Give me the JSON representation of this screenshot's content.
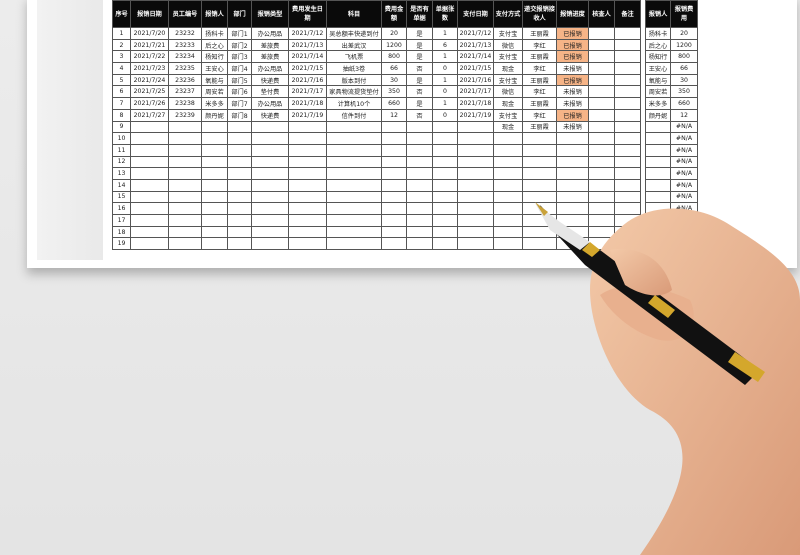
{
  "main_table": {
    "headers": [
      "序号",
      "报销日期",
      "员工编号",
      "报销人",
      "部门",
      "报销类型",
      "费用发生日期",
      "科目",
      "费用金额",
      "是否有单据",
      "单据张数",
      "支付日期",
      "支付方式",
      "递交报销接收人",
      "报销进度",
      "核查人",
      "备注"
    ],
    "rows": [
      [
        "1",
        "2021/7/20",
        "23232",
        "扬科卡",
        "部门1",
        "办公用品",
        "2021/7/12",
        "吴总额丰快递到付",
        "20",
        "是",
        "1",
        "2021/7/12",
        "支付宝",
        "王丽霞",
        "已报销",
        "",
        ""
      ],
      [
        "2",
        "2021/7/21",
        "23233",
        "后之心",
        "部门2",
        "差旅费",
        "2021/7/13",
        "出差武汉",
        "1200",
        "是",
        "6",
        "2021/7/13",
        "微信",
        "李红",
        "已报销",
        "",
        ""
      ],
      [
        "3",
        "2021/7/22",
        "23234",
        "杨知行",
        "部门3",
        "差旅费",
        "2021/7/14",
        "飞机票",
        "800",
        "是",
        "1",
        "2021/7/14",
        "支付宝",
        "王丽霞",
        "已报销",
        "",
        ""
      ],
      [
        "4",
        "2021/7/23",
        "23235",
        "王安心",
        "部门4",
        "办公用品",
        "2021/7/15",
        "抽纸3卷",
        "66",
        "否",
        "0",
        "2021/7/15",
        "现金",
        "李红",
        "未报销",
        "",
        ""
      ],
      [
        "5",
        "2021/7/24",
        "23236",
        "氧能与",
        "部门5",
        "快递费",
        "2021/7/16",
        "版本到付",
        "30",
        "是",
        "1",
        "2021/7/16",
        "支付宝",
        "王丽霞",
        "已报销",
        "",
        ""
      ],
      [
        "6",
        "2021/7/25",
        "23237",
        "周安若",
        "部门6",
        "垫付费",
        "2021/7/17",
        "家具物流提货垫付",
        "350",
        "否",
        "0",
        "2021/7/17",
        "微信",
        "李红",
        "未报销",
        "",
        ""
      ],
      [
        "7",
        "2021/7/26",
        "23238",
        "米多多",
        "部门7",
        "办公用品",
        "2021/7/18",
        "计算机10个",
        "660",
        "是",
        "1",
        "2021/7/18",
        "现金",
        "王丽霞",
        "未报销",
        "",
        ""
      ],
      [
        "8",
        "2021/7/27",
        "23239",
        "颜丹妮",
        "部门8",
        "快递费",
        "2021/7/19",
        "信件到付",
        "12",
        "否",
        "0",
        "2021/7/19",
        "支付宝",
        "李红",
        "已报销",
        "",
        ""
      ],
      [
        "9",
        "",
        "",
        "",
        "",
        "",
        "",
        "",
        "",
        "",
        "",
        "",
        "现金",
        "王丽霞",
        "未报销",
        "",
        ""
      ],
      [
        "10",
        "",
        "",
        "",
        "",
        "",
        "",
        "",
        "",
        "",
        "",
        "",
        "",
        "",
        "",
        "",
        ""
      ],
      [
        "11",
        "",
        "",
        "",
        "",
        "",
        "",
        "",
        "",
        "",
        "",
        "",
        "",
        "",
        "",
        "",
        ""
      ],
      [
        "12",
        "",
        "",
        "",
        "",
        "",
        "",
        "",
        "",
        "",
        "",
        "",
        "",
        "",
        "",
        "",
        ""
      ],
      [
        "13",
        "",
        "",
        "",
        "",
        "",
        "",
        "",
        "",
        "",
        "",
        "",
        "",
        "",
        "",
        "",
        ""
      ],
      [
        "14",
        "",
        "",
        "",
        "",
        "",
        "",
        "",
        "",
        "",
        "",
        "",
        "",
        "",
        "",
        "",
        ""
      ],
      [
        "15",
        "",
        "",
        "",
        "",
        "",
        "",
        "",
        "",
        "",
        "",
        "",
        "",
        "",
        "",
        "",
        ""
      ],
      [
        "16",
        "",
        "",
        "",
        "",
        "",
        "",
        "",
        "",
        "",
        "",
        "",
        "",
        "",
        "",
        "",
        ""
      ],
      [
        "17",
        "",
        "",
        "",
        "",
        "",
        "",
        "",
        "",
        "",
        "",
        "",
        "",
        "",
        "",
        "",
        ""
      ],
      [
        "18",
        "",
        "",
        "",
        "",
        "",
        "",
        "",
        "",
        "",
        "",
        "",
        "",
        "",
        "",
        "",
        ""
      ],
      [
        "19",
        "",
        "",
        "",
        "",
        "",
        "",
        "",
        "",
        "",
        "",
        "",
        "",
        "",
        "",
        "",
        ""
      ]
    ]
  },
  "summary_table": {
    "headers": [
      "报销人",
      "报销费用"
    ],
    "rows": [
      [
        "扬科卡",
        "20"
      ],
      [
        "后之心",
        "1200"
      ],
      [
        "杨知行",
        "800"
      ],
      [
        "王安心",
        "66"
      ],
      [
        "氧能与",
        "30"
      ],
      [
        "周安若",
        "350"
      ],
      [
        "米多多",
        "660"
      ],
      [
        "颜丹妮",
        "12"
      ],
      [
        "",
        "#N/A"
      ],
      [
        "",
        "#N/A"
      ],
      [
        "",
        "#N/A"
      ],
      [
        "",
        "#N/A"
      ],
      [
        "",
        "#N/A"
      ],
      [
        "",
        "#N/A"
      ],
      [
        "",
        "#N/A"
      ],
      [
        "",
        "#N/A"
      ],
      [
        "",
        "#N/A"
      ],
      [
        "",
        "#N/A"
      ],
      [
        "",
        "#N/A"
      ]
    ]
  },
  "colors": {
    "header_bg": "#0a0a0a",
    "reimbursed_highlight": "#f6b487"
  },
  "done_status": "已报销"
}
